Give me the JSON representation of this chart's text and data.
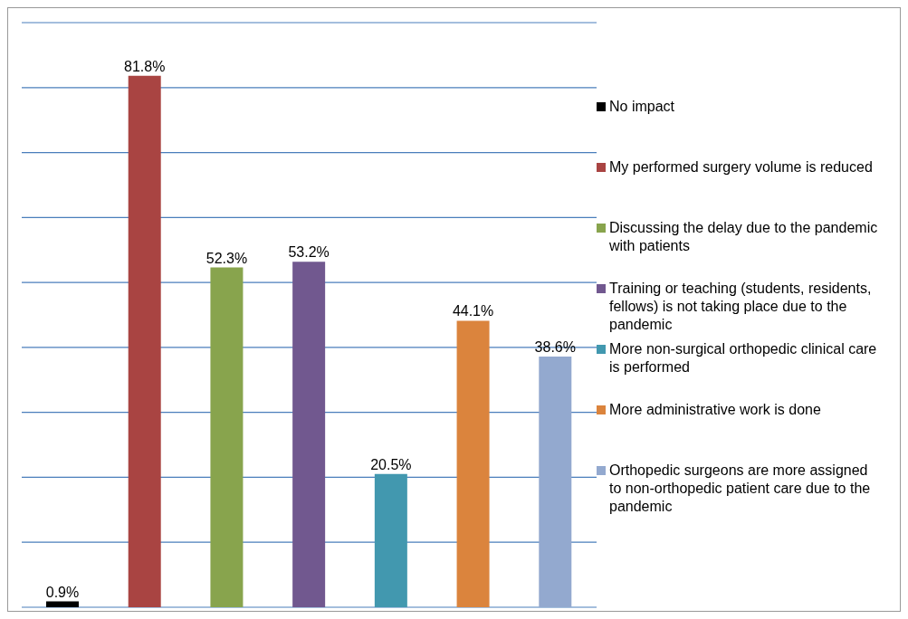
{
  "chart_data": {
    "type": "bar",
    "categories": [
      null,
      null,
      null,
      null,
      null,
      null,
      null
    ],
    "stacked": true,
    "series": [
      {
        "name": "No impact",
        "color": "#000000",
        "values": [
          0.9,
          null,
          null,
          null,
          null,
          null,
          null
        ],
        "value_labels": [
          "0.9%",
          null,
          null,
          null,
          null,
          null,
          null
        ]
      },
      {
        "name": "My performed surgery volume is reduced",
        "color": "#a94442",
        "values": [
          null,
          81.8,
          null,
          null,
          null,
          null,
          null
        ],
        "value_labels": [
          null,
          "81.8%",
          null,
          null,
          null,
          null,
          null
        ]
      },
      {
        "name": "Discussing the delay due to the pandemic with patients",
        "color": "#88a44d",
        "values": [
          null,
          null,
          52.3,
          null,
          null,
          null,
          null
        ],
        "value_labels": [
          null,
          null,
          "52.3%",
          null,
          null,
          null,
          null
        ]
      },
      {
        "name": "Training or teaching (students, residents, fellows) is not taking place due to the pandemic",
        "color": "#71588f",
        "values": [
          null,
          null,
          null,
          53.2,
          null,
          null,
          null
        ],
        "value_labels": [
          null,
          null,
          null,
          "53.2%",
          null,
          null,
          null
        ]
      },
      {
        "name": "More non-surgical orthopedic clinical care is performed",
        "color": "#4298af",
        "values": [
          null,
          null,
          null,
          null,
          20.5,
          null,
          null
        ],
        "value_labels": [
          null,
          null,
          null,
          null,
          "20.5%",
          null,
          null
        ]
      },
      {
        "name": "More administrative work is done",
        "color": "#db843d",
        "values": [
          null,
          null,
          null,
          null,
          null,
          44.1,
          null
        ],
        "value_labels": [
          null,
          null,
          null,
          null,
          null,
          "44.1%",
          null
        ]
      },
      {
        "name": "Orthopedic surgeons are more assigned to non-orthopedic patient care due to the pandemic",
        "color": "#93a9cf",
        "values": [
          null,
          null,
          null,
          null,
          null,
          null,
          38.6
        ],
        "value_labels": [
          null,
          null,
          null,
          null,
          null,
          null,
          "38.6%"
        ]
      }
    ],
    "ylim": [
      0,
      90
    ],
    "yticks": [
      {
        "value": 0,
        "label": null
      },
      {
        "value": 10,
        "label": null
      },
      {
        "value": 20,
        "label": null
      },
      {
        "value": 30,
        "label": null
      },
      {
        "value": 40,
        "label": null
      },
      {
        "value": 50,
        "label": null
      },
      {
        "value": 60,
        "label": null
      },
      {
        "value": 70,
        "label": null
      },
      {
        "value": 80,
        "label": null
      },
      {
        "value": 90,
        "label": null
      }
    ],
    "grid": "y",
    "legend": "right",
    "tick_labels": false
  }
}
